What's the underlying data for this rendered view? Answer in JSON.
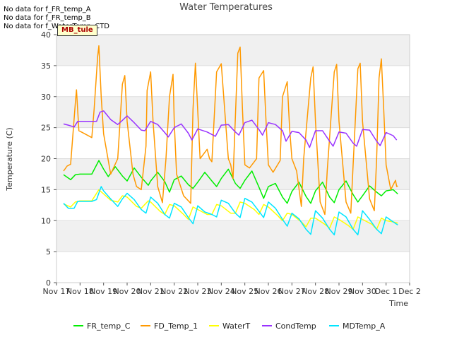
{
  "notes": [
    "No data for f_FR_temp_A",
    "No data for f_FR_temp_B",
    "No data for f_WaterTemp_CTD"
  ],
  "badge": "MB_tule",
  "chart_data": {
    "type": "line",
    "title": "Water Temperatures",
    "xlabel": "Time",
    "ylabel": "Temperature (C)",
    "ylim": [
      0,
      40
    ],
    "yticks": [
      0,
      5,
      10,
      15,
      20,
      25,
      30,
      35,
      40
    ],
    "xlim": [
      0,
      15
    ],
    "xtick_labels": [
      "Nov 17",
      "Nov 18",
      "Nov 19",
      "Nov 20",
      "Nov 21",
      "Nov 22",
      "Nov 23",
      "Nov 24",
      "Nov 25",
      "Nov 26",
      "Nov 27",
      "Nov 28",
      "Nov 29",
      "Nov 30",
      "Dec 1",
      "Dec 2"
    ],
    "grid": "horizontal bands",
    "legend": "bottom",
    "series": [
      {
        "name": "FR_temp_C",
        "color": "#00ee00",
        "x": [
          0.3,
          0.6,
          0.8,
          1.0,
          1.5,
          1.8,
          2.0,
          2.2,
          2.5,
          2.8,
          3.0,
          3.3,
          3.6,
          3.9,
          4.0,
          4.3,
          4.6,
          4.8,
          5.0,
          5.3,
          5.6,
          5.8,
          6.0,
          6.3,
          6.6,
          6.8,
          7.0,
          7.3,
          7.6,
          7.8,
          8.0,
          8.3,
          8.6,
          8.8,
          9.0,
          9.3,
          9.6,
          9.8,
          10.0,
          10.3,
          10.6,
          10.8,
          11.0,
          11.3,
          11.6,
          11.8,
          12.0,
          12.3,
          12.6,
          12.8,
          13.0,
          13.3,
          13.6,
          13.8,
          14.0,
          14.3,
          14.5
        ],
        "y": [
          17.4,
          16.6,
          17.4,
          17.5,
          17.5,
          19.7,
          18.3,
          17.1,
          18.7,
          17.2,
          16.4,
          18.5,
          17.0,
          15.7,
          16.4,
          17.8,
          16.3,
          14.6,
          16.6,
          17.2,
          15.8,
          15.2,
          16.2,
          17.8,
          16.4,
          15.5,
          16.8,
          18.3,
          16.0,
          15.2,
          16.5,
          18.0,
          15.4,
          13.6,
          15.5,
          16.0,
          13.8,
          12.8,
          14.7,
          16.2,
          13.9,
          12.8,
          14.8,
          16.2,
          13.8,
          12.9,
          15.0,
          16.4,
          14.2,
          13.0,
          14.0,
          15.6,
          14.6,
          14.0,
          14.8,
          15.0,
          14.3
        ]
      },
      {
        "name": "FD_Temp_1",
        "color": "#ff9900",
        "x": [
          0.3,
          0.45,
          0.6,
          0.8,
          0.85,
          0.95,
          1.1,
          1.5,
          1.6,
          1.75,
          1.8,
          1.9,
          2.0,
          2.3,
          2.6,
          2.8,
          2.9,
          3.0,
          3.25,
          3.4,
          3.6,
          3.8,
          3.85,
          4.0,
          4.1,
          4.3,
          4.5,
          4.65,
          4.8,
          4.95,
          5.0,
          5.1,
          5.4,
          5.7,
          5.8,
          5.9,
          6.1,
          6.4,
          6.5,
          6.6,
          6.8,
          7.0,
          7.2,
          7.3,
          7.4,
          7.5,
          7.7,
          7.8,
          7.9,
          8.0,
          8.2,
          8.4,
          8.5,
          8.6,
          8.8,
          8.9,
          9.0,
          9.2,
          9.5,
          9.6,
          9.8,
          9.9,
          10.0,
          10.2,
          10.4,
          10.5,
          10.8,
          10.9,
          11.0,
          11.2,
          11.4,
          11.5,
          11.8,
          11.9,
          12.0,
          12.3,
          12.5,
          12.6,
          12.8,
          12.9,
          13.0,
          13.3,
          13.5,
          13.6,
          13.7,
          13.8,
          13.9,
          14.0,
          14.2,
          14.4,
          14.45,
          14.5
        ],
        "y": [
          18.0,
          18.8,
          19.1,
          29.0,
          31.1,
          24.5,
          24.2,
          23.4,
          28.0,
          36.5,
          38.2,
          30.0,
          24.0,
          17.5,
          20.0,
          32.0,
          33.4,
          26.0,
          17.5,
          15.5,
          15.0,
          22.0,
          31.0,
          34.0,
          26.0,
          15.5,
          12.9,
          20.0,
          30.0,
          33.6,
          26.0,
          17.5,
          14.0,
          12.8,
          28.0,
          35.4,
          20.0,
          21.5,
          20.0,
          19.5,
          34.0,
          35.3,
          25.0,
          20.0,
          19.0,
          16.8,
          37.0,
          38.0,
          28.0,
          19.0,
          18.5,
          19.5,
          20.0,
          33.0,
          34.2,
          26.0,
          19.0,
          17.8,
          19.7,
          30.0,
          32.4,
          25.0,
          20.0,
          18.0,
          12.3,
          20.0,
          33.0,
          34.8,
          26.0,
          13.0,
          11.0,
          18.0,
          34.0,
          35.2,
          26.0,
          13.0,
          11.2,
          19.0,
          34.5,
          35.4,
          26.0,
          13.5,
          11.6,
          20.0,
          33.0,
          36.1,
          28.0,
          19.0,
          15.0,
          16.5,
          15.5,
          15.6
        ]
      },
      {
        "name": "WaterT",
        "color": "#ffff00",
        "x": [
          0.3,
          0.6,
          0.8,
          1.0,
          1.5,
          1.8,
          2.0,
          2.3,
          2.6,
          2.8,
          3.0,
          3.4,
          3.6,
          3.9,
          4.0,
          4.4,
          4.6,
          4.8,
          5.0,
          5.4,
          5.6,
          5.8,
          6.0,
          6.4,
          6.6,
          6.8,
          7.0,
          7.4,
          7.6,
          7.8,
          8.0,
          8.4,
          8.6,
          8.8,
          9.0,
          9.4,
          9.6,
          9.8,
          10.0,
          10.4,
          10.6,
          10.8,
          11.0,
          11.4,
          11.6,
          11.8,
          12.0,
          12.4,
          12.6,
          12.8,
          13.0,
          13.4,
          13.6,
          13.8,
          14.0,
          14.3,
          14.5
        ],
        "y": [
          12.7,
          12.2,
          13.0,
          13.2,
          13.2,
          15.0,
          14.3,
          13.3,
          13.0,
          14.0,
          13.8,
          12.3,
          12.0,
          13.2,
          13.0,
          11.5,
          11.0,
          12.6,
          12.4,
          11.0,
          10.2,
          12.2,
          11.8,
          11.0,
          11.0,
          12.6,
          12.4,
          11.2,
          11.2,
          13.0,
          12.8,
          11.8,
          11.0,
          12.6,
          12.2,
          10.8,
          10.0,
          11.2,
          11.0,
          9.8,
          9.0,
          10.4,
          10.4,
          9.4,
          8.8,
          10.6,
          10.2,
          9.2,
          8.6,
          10.6,
          10.2,
          9.4,
          8.6,
          10.4,
          10.0,
          9.8,
          9.6
        ]
      },
      {
        "name": "CondTemp",
        "color": "#9933ff",
        "x": [
          0.3,
          0.5,
          0.75,
          0.9,
          1.2,
          1.5,
          1.7,
          1.85,
          2.0,
          2.3,
          2.6,
          2.75,
          3.0,
          3.3,
          3.6,
          3.75,
          4.0,
          4.3,
          4.6,
          4.75,
          5.0,
          5.3,
          5.6,
          5.75,
          6.0,
          6.4,
          6.6,
          6.75,
          7.0,
          7.3,
          7.6,
          7.75,
          8.0,
          8.3,
          8.6,
          8.75,
          9.0,
          9.3,
          9.6,
          9.75,
          10.0,
          10.3,
          10.6,
          10.75,
          11.0,
          11.3,
          11.6,
          11.75,
          12.0,
          12.3,
          12.6,
          12.75,
          13.0,
          13.3,
          13.6,
          13.75,
          14.0,
          14.3,
          14.45
        ],
        "y": [
          25.6,
          25.4,
          25.1,
          26.0,
          26.0,
          26.0,
          26.0,
          27.5,
          27.7,
          26.3,
          25.5,
          26.0,
          26.9,
          25.8,
          24.6,
          24.5,
          26.0,
          25.5,
          24.2,
          23.5,
          25.0,
          25.6,
          24.1,
          23.0,
          24.8,
          24.3,
          23.9,
          23.6,
          25.4,
          25.5,
          24.3,
          23.8,
          25.8,
          26.2,
          24.7,
          23.8,
          25.8,
          25.5,
          24.5,
          22.8,
          24.4,
          24.2,
          23.0,
          21.8,
          24.5,
          24.5,
          22.8,
          22.0,
          24.3,
          24.1,
          22.5,
          22.0,
          24.7,
          24.6,
          22.8,
          22.1,
          24.2,
          23.7,
          23.0
        ]
      },
      {
        "name": "MDTemp_A",
        "color": "#00e5ff",
        "x": [
          0.3,
          0.5,
          0.75,
          0.9,
          1.1,
          1.5,
          1.7,
          1.9,
          2.0,
          2.3,
          2.6,
          2.8,
          3.0,
          3.3,
          3.6,
          3.8,
          4.0,
          4.3,
          4.6,
          4.8,
          5.0,
          5.3,
          5.6,
          5.8,
          6.0,
          6.3,
          6.6,
          6.8,
          7.0,
          7.3,
          7.6,
          7.8,
          8.0,
          8.3,
          8.6,
          8.8,
          9.0,
          9.3,
          9.6,
          9.8,
          10.0,
          10.3,
          10.6,
          10.8,
          11.0,
          11.3,
          11.6,
          11.8,
          12.0,
          12.3,
          12.6,
          12.8,
          13.0,
          13.3,
          13.6,
          13.8,
          14.0,
          14.3,
          14.5
        ],
        "y": [
          12.8,
          12.0,
          12.0,
          13.1,
          13.1,
          13.1,
          13.4,
          15.5,
          14.8,
          13.5,
          12.3,
          13.5,
          14.4,
          13.4,
          11.8,
          11.2,
          13.8,
          12.8,
          11.0,
          10.4,
          12.8,
          12.2,
          10.5,
          9.5,
          12.4,
          11.4,
          11.0,
          10.6,
          13.3,
          12.8,
          11.2,
          10.5,
          13.6,
          13.0,
          11.5,
          10.5,
          13.0,
          12.0,
          10.2,
          9.1,
          11.2,
          10.3,
          8.6,
          7.8,
          11.6,
          10.4,
          8.6,
          7.7,
          11.4,
          10.6,
          8.6,
          7.7,
          11.6,
          10.2,
          8.6,
          7.9,
          10.6,
          9.8,
          9.3
        ]
      }
    ]
  }
}
